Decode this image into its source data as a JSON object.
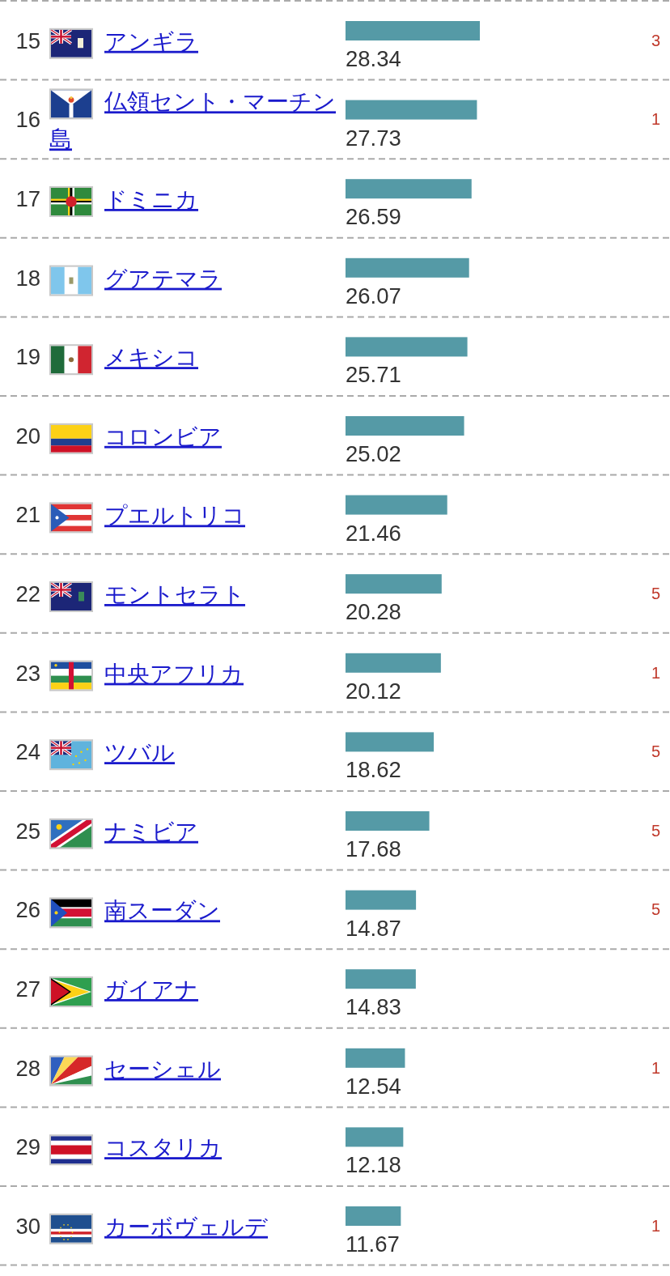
{
  "chart_data": {
    "type": "bar",
    "orientation": "horizontal",
    "categories": [
      "アンギラ",
      "仏領セント・マーチン島",
      "ドミニカ",
      "グアテマラ",
      "メキシコ",
      "コロンビア",
      "プエルトリコ",
      "モントセラト",
      "中央アフリカ",
      "ツバル",
      "ナミビア",
      "南スーダン",
      "ガイアナ",
      "セーシェル",
      "コスタリカ",
      "カーボヴェルデ"
    ],
    "values": [
      28.34,
      27.73,
      26.59,
      26.07,
      25.71,
      25.02,
      21.46,
      20.28,
      20.12,
      18.62,
      17.68,
      14.87,
      14.83,
      12.54,
      12.18,
      11.67
    ],
    "color": "#559aa6",
    "data_labels": true,
    "annotations": [
      "15",
      "16",
      "17",
      "18",
      "19",
      "20",
      "21",
      "22",
      "23",
      "24",
      "25",
      "26",
      "27",
      "28",
      "29",
      "30",
      "3",
      "1",
      null,
      null,
      null,
      null,
      null,
      "5",
      "1",
      "5",
      "5",
      "5",
      null,
      "1",
      null,
      "1"
    ]
  }
}
